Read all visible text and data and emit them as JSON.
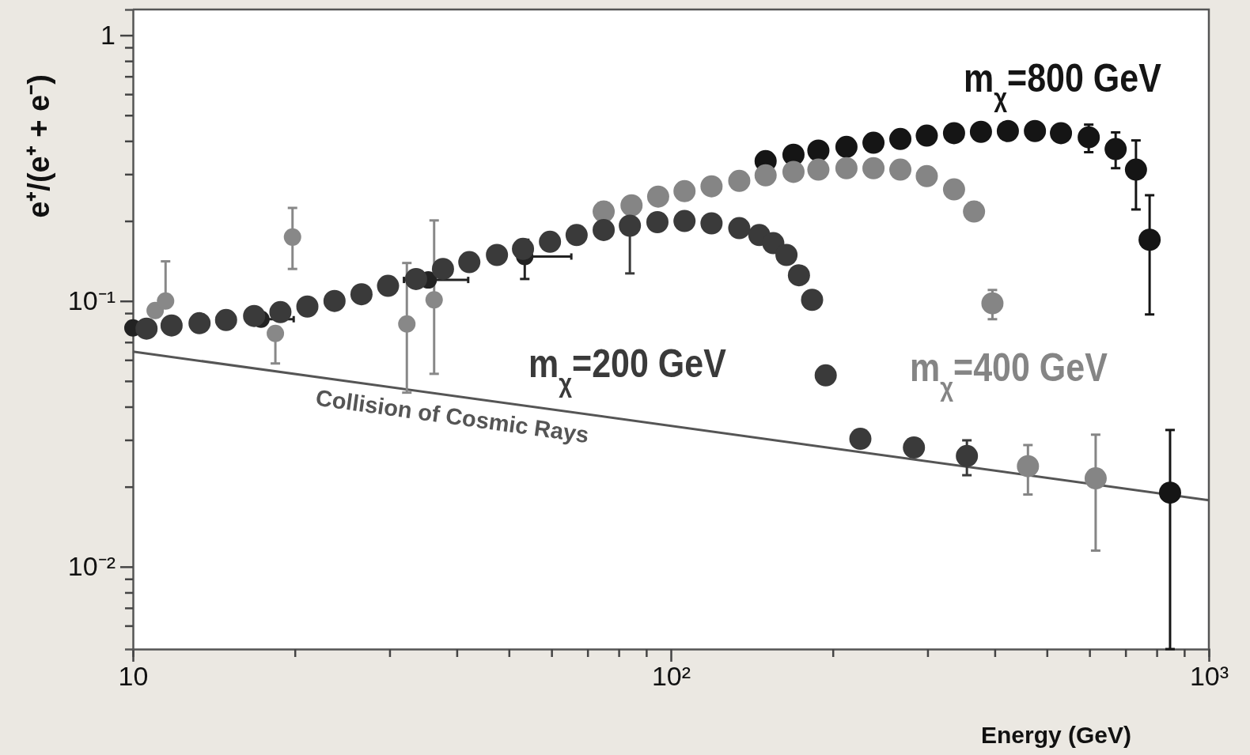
{
  "chart_data": {
    "type": "scatter",
    "xlabel": "Energy (GeV)",
    "ylabel": "e⁺/(e⁺ + e⁻)",
    "log": "xy",
    "marker": "circle",
    "xlim": [
      10,
      1000
    ],
    "ylim": [
      0.0049,
      1.25
    ],
    "xticks": [
      {
        "value": 10,
        "label": "10"
      },
      {
        "value": 20,
        "label": null
      },
      {
        "value": 30,
        "label": null
      },
      {
        "value": 40,
        "label": null
      },
      {
        "value": 50,
        "label": null
      },
      {
        "value": 60,
        "label": null
      },
      {
        "value": 70,
        "label": null
      },
      {
        "value": 80,
        "label": null
      },
      {
        "value": 90,
        "label": null
      },
      {
        "value": 100,
        "label": "10²"
      },
      {
        "value": 200,
        "label": null
      },
      {
        "value": 300,
        "label": null
      },
      {
        "value": 400,
        "label": null
      },
      {
        "value": 500,
        "label": null
      },
      {
        "value": 600,
        "label": null
      },
      {
        "value": 700,
        "label": null
      },
      {
        "value": 800,
        "label": null
      },
      {
        "value": 900,
        "label": null
      },
      {
        "value": 1000,
        "label": "10³"
      }
    ],
    "yticks": [
      {
        "value": 0.006,
        "label": null
      },
      {
        "value": 0.007,
        "label": null
      },
      {
        "value": 0.008,
        "label": null
      },
      {
        "value": 0.009,
        "label": null
      },
      {
        "value": 0.01,
        "label": "10⁻²"
      },
      {
        "value": 0.02,
        "label": null
      },
      {
        "value": 0.03,
        "label": null
      },
      {
        "value": 0.04,
        "label": null
      },
      {
        "value": 0.05,
        "label": null
      },
      {
        "value": 0.06,
        "label": null
      },
      {
        "value": 0.07,
        "label": null
      },
      {
        "value": 0.08,
        "label": null
      },
      {
        "value": 0.09,
        "label": null
      },
      {
        "value": 0.1,
        "label": "10⁻¹"
      },
      {
        "value": 0.2,
        "label": null
      },
      {
        "value": 0.3,
        "label": null
      },
      {
        "value": 0.4,
        "label": null
      },
      {
        "value": 0.5,
        "label": null
      },
      {
        "value": 0.6,
        "label": null
      },
      {
        "value": 0.7,
        "label": null
      },
      {
        "value": 0.8,
        "label": null
      },
      {
        "value": 0.9,
        "label": null
      },
      {
        "value": 1,
        "label": "1"
      }
    ],
    "series": [
      {
        "name": "Collision of Cosmic Rays",
        "type": "line",
        "marker": "none",
        "color": "#555555",
        "x": [
          10,
          1000
        ],
        "values": [
          0.0645,
          0.0178
        ]
      },
      {
        "color": "#888888",
        "x": [
          11.0,
          11.5,
          18.4,
          19.8,
          32.3,
          36.3
        ],
        "values": [
          0.0921,
          0.1,
          0.0755,
          0.174,
          0.082,
          0.101
        ],
        "errors": [
          null,
          [
            0.1,
            0.141
          ],
          [
            0.0582,
            0.0755
          ],
          [
            0.132,
            0.224
          ],
          [
            0.0452,
            0.139
          ],
          [
            0.0532,
            0.201
          ]
        ]
      },
      {
        "color": "#222222",
        "x": [
          10,
          17.3,
          35.4,
          53.5
        ],
        "values": [
          0.0792,
          0.0854,
          0.12,
          0.147
        ],
        "xerrors": [
          null,
          [
            17.3,
            19.9
          ],
          [
            31.9,
            42.0
          ],
          [
            53.5,
            65.3
          ]
        ],
        "errors": [
          null,
          null,
          null,
          [
            0.121,
            0.17
          ]
        ]
      },
      {
        "name": "m$_{χ}$=800 GeV",
        "color": "#151515",
        "x": [
          150,
          169,
          188,
          212,
          238,
          267,
          299,
          336,
          377,
          423,
          475,
          531,
          598,
          671,
          732,
          776,
          847
        ],
        "values": [
          0.336,
          0.355,
          0.368,
          0.38,
          0.394,
          0.407,
          0.419,
          0.428,
          0.433,
          0.436,
          0.436,
          0.428,
          0.413,
          0.373,
          0.312,
          0.17,
          0.019
        ],
        "errors": [
          null,
          null,
          null,
          null,
          null,
          null,
          null,
          null,
          null,
          null,
          null,
          null,
          [
            0.363,
            0.461
          ],
          [
            0.316,
            0.431
          ],
          [
            0.221,
            0.402
          ],
          [
            0.089,
            0.25
          ],
          [
            0.0049,
            0.0327
          ]
        ]
      },
      {
        "name": "m$_{χ}$=400 GeV",
        "color": "#858585",
        "x": [
          75.0,
          84.5,
          94.7,
          106,
          119,
          134,
          150,
          169,
          188,
          212,
          238,
          267,
          299,
          336,
          366,
          396,
          461,
          616
        ],
        "values": [
          0.217,
          0.229,
          0.247,
          0.259,
          0.27,
          0.283,
          0.297,
          0.306,
          0.312,
          0.316,
          0.316,
          0.312,
          0.295,
          0.263,
          0.217,
          0.098,
          0.0239,
          0.0215
        ],
        "errors": [
          null,
          null,
          null,
          null,
          null,
          null,
          null,
          null,
          null,
          null,
          null,
          null,
          null,
          null,
          null,
          [
            0.0854,
            0.11
          ],
          [
            0.0187,
            0.0287
          ],
          [
            0.0115,
            0.0314
          ]
        ]
      },
      {
        "name": "m$_{χ}$=200 GeV",
        "color": "#3a3a3a",
        "x": [
          10.6,
          11.8,
          13.3,
          14.9,
          16.8,
          18.8,
          21.1,
          23.7,
          26.6,
          29.8,
          33.6,
          37.7,
          42.2,
          47.5,
          53.1,
          59.6,
          66.8,
          75.0,
          83.9,
          94.4,
          106,
          119,
          134,
          146,
          155,
          164,
          173,
          183,
          194,
          225,
          283,
          355
        ],
        "values": [
          0.0787,
          0.0809,
          0.0825,
          0.0848,
          0.0878,
          0.0908,
          0.0953,
          0.1,
          0.106,
          0.114,
          0.121,
          0.132,
          0.14,
          0.149,
          0.157,
          0.167,
          0.177,
          0.185,
          0.192,
          0.198,
          0.2,
          0.196,
          0.188,
          0.177,
          0.165,
          0.149,
          0.125,
          0.101,
          0.0525,
          0.0303,
          0.0281,
          0.0261
        ],
        "errors": [
          null,
          null,
          null,
          null,
          null,
          null,
          null,
          null,
          null,
          null,
          null,
          null,
          null,
          null,
          null,
          null,
          null,
          null,
          [
            0.127,
            0.192
          ],
          null,
          null,
          null,
          null,
          null,
          null,
          null,
          null,
          null,
          null,
          null,
          null,
          [
            0.0221,
            0.0299
          ]
        ]
      }
    ]
  }
}
